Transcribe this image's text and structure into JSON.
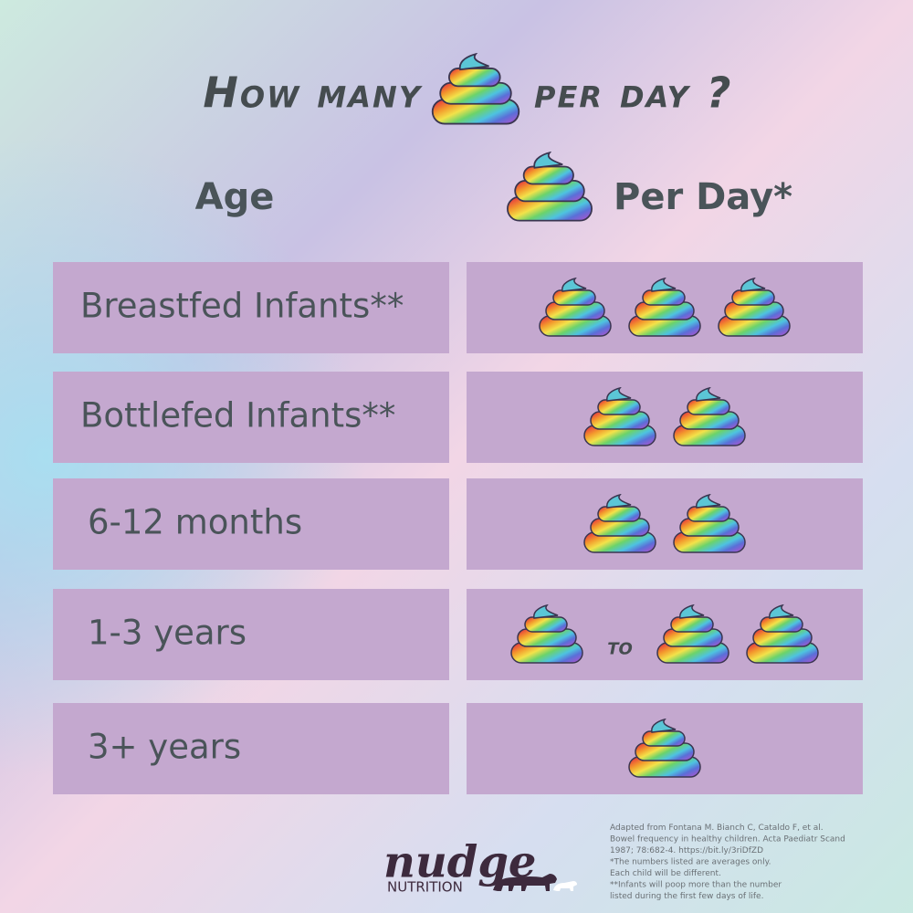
{
  "title": {
    "before": "How many",
    "after": "per day ?"
  },
  "header": {
    "age": "Age",
    "per_day": "Per Day*"
  },
  "rows": [
    {
      "age": "Breastfed Infants**",
      "count": 3
    },
    {
      "age": "Bottlefed Infants**",
      "count": 2
    },
    {
      "age": "6-12 months",
      "count": 2
    },
    {
      "age": "1-3 years",
      "range": [
        1,
        2
      ],
      "joiner": "to"
    },
    {
      "age": "3+ years",
      "count": 1
    }
  ],
  "footnotes": [
    "Adapted from Fontana M. Bianch C, Cataldo F, et al.",
    "Bowel frequency in healthy children. Acta Paediatr Scand",
    "1987; 78:682-4. https://bit.ly/3riDfZD",
    "*The numbers listed are averages only.",
    "Each child will be different.",
    "**Infants will poop more than the number",
    "listed during the first few days of life."
  ],
  "logo": {
    "brand": "nudge",
    "sub": "NUTRITION"
  }
}
